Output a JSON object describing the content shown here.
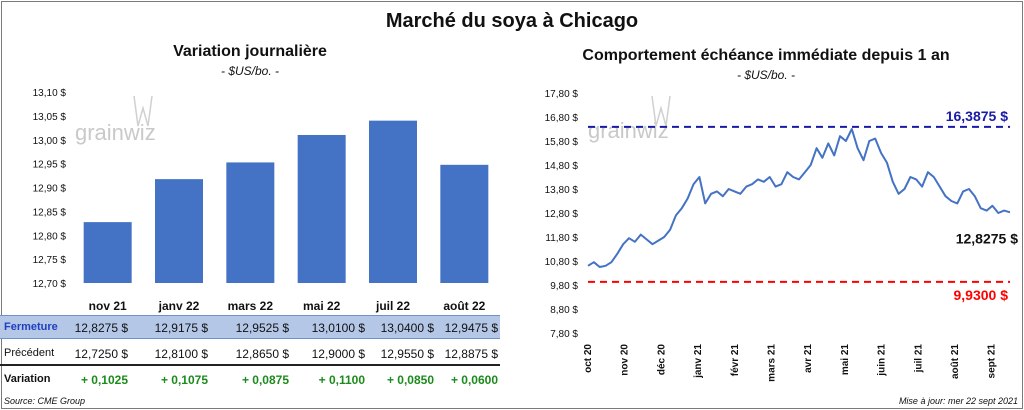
{
  "title": "Marché du soya à Chicago",
  "left_panel": {
    "subtitle": "Variation journalière",
    "unit": "- $US/bo. -",
    "watermark": "grainwiz",
    "table": {
      "rows": [
        {
          "label": "Fermeture",
          "values": [
            "12,8275 $",
            "12,9175 $",
            "12,9525 $",
            "13,0100 $",
            "13,0400 $",
            "12,9475 $"
          ]
        },
        {
          "label": "Précédent",
          "values": [
            "12,7250 $",
            "12,8100 $",
            "12,8650 $",
            "12,9000 $",
            "12,9550 $",
            "12,8875 $"
          ]
        },
        {
          "label": "Variation",
          "values": [
            "+ 0,1025",
            "+ 0,1075",
            "+ 0,0875",
            "+ 0,1100",
            "+ 0,0850",
            "+ 0,0600"
          ]
        }
      ]
    },
    "source": "Source: CME Group"
  },
  "right_panel": {
    "subtitle": "Comportement  échéance immédiate depuis 1 an",
    "unit": "- $US/bo. -",
    "watermark": "grainwiz",
    "update": "Mise à jour: mer 22 sept 2021"
  },
  "colors": {
    "bar": "#4472c4",
    "line": "#4472c4",
    "high": "#1a1aa8",
    "low": "#ff0000",
    "table_highlight": "#b4c7e7"
  },
  "chart_data": [
    {
      "type": "bar",
      "categories": [
        "nov 21",
        "janv 22",
        "mars 22",
        "mai 22",
        "juil 22",
        "août 22"
      ],
      "values": [
        12.8275,
        12.9175,
        12.9525,
        13.01,
        13.04,
        12.9475
      ],
      "y_ticks": [
        "12,70 $",
        "12,75 $",
        "12,80 $",
        "12,85 $",
        "12,90 $",
        "12,95 $",
        "13,00 $",
        "13,05 $",
        "13,10 $"
      ],
      "ylim": [
        12.7,
        13.1
      ],
      "grid": false
    },
    {
      "type": "line",
      "x_ticks": [
        "oct 20",
        "nov 20",
        "déc 20",
        "janv 21",
        "févr 21",
        "mars 21",
        "avr 21",
        "mai 21",
        "juin 21",
        "juil 21",
        "août 21",
        "sept 21"
      ],
      "y_ticks": [
        "7,80 $",
        "8,80 $",
        "9,80 $",
        "10,80 $",
        "11,80 $",
        "12,80 $",
        "13,80 $",
        "14,80 $",
        "15,80 $",
        "16,80 $",
        "17,80 $"
      ],
      "ylim": [
        7.8,
        17.8
      ],
      "values": [
        10.6,
        10.75,
        10.55,
        10.6,
        10.75,
        11.1,
        11.5,
        11.75,
        11.6,
        11.9,
        11.7,
        11.5,
        11.65,
        11.8,
        12.1,
        12.7,
        13.0,
        13.4,
        14.0,
        14.3,
        13.2,
        13.6,
        13.7,
        13.5,
        13.8,
        13.7,
        13.6,
        13.9,
        14.0,
        14.2,
        14.1,
        14.3,
        13.9,
        14.0,
        14.5,
        14.3,
        14.2,
        14.5,
        14.8,
        15.5,
        15.1,
        15.7,
        15.2,
        16.0,
        15.8,
        16.3,
        15.5,
        15.0,
        15.8,
        15.9,
        15.3,
        14.9,
        14.1,
        13.6,
        13.8,
        14.3,
        14.2,
        13.9,
        14.5,
        14.3,
        13.9,
        13.5,
        13.3,
        13.2,
        13.7,
        13.8,
        13.5,
        13.0,
        12.9,
        13.1,
        12.8,
        12.9,
        12.8275
      ],
      "annotations": [
        {
          "label": "16,3875 $",
          "value": 16.3875
        },
        {
          "label": "12,8275 $",
          "value": 12.8275
        },
        {
          "label": "9,9300 $",
          "value": 9.93
        }
      ],
      "grid": false
    }
  ]
}
